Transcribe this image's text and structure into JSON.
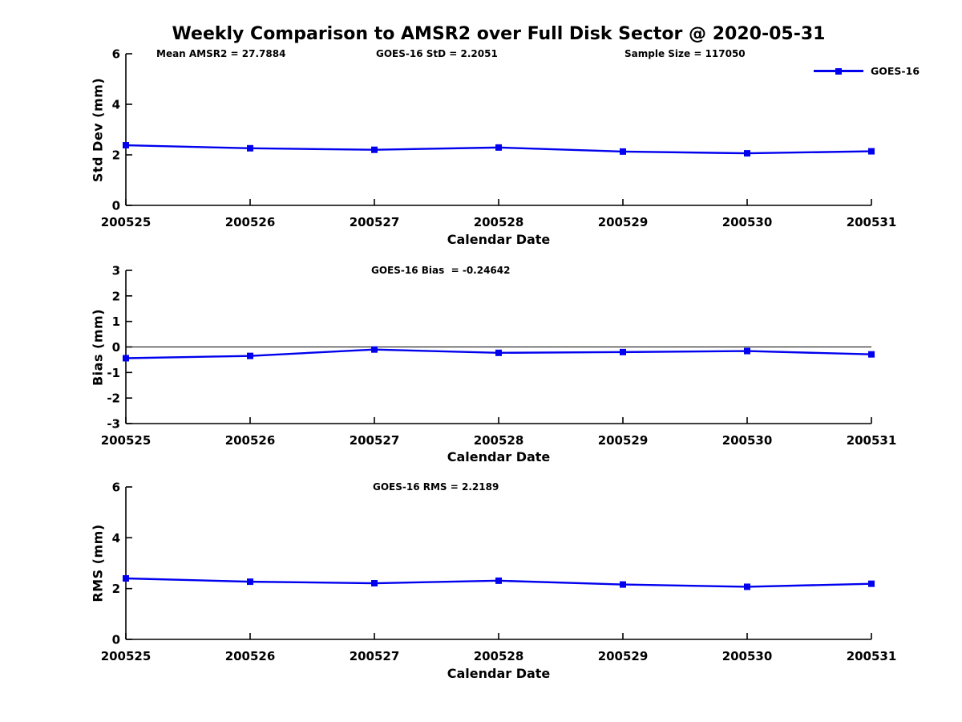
{
  "title": "Weekly Comparison to AMSR2 over Full Disk Sector @ 2020-05-31",
  "legend": {
    "label": "GOES-16",
    "series_color": "#0000EE"
  },
  "chart_data": [
    {
      "type": "line",
      "name": "std-dev",
      "categories": [
        "200525",
        "200526",
        "200527",
        "200528",
        "200529",
        "200530",
        "200531"
      ],
      "series": [
        {
          "name": "GOES-16",
          "values": [
            2.38,
            2.26,
            2.2,
            2.29,
            2.13,
            2.06,
            2.14
          ]
        }
      ],
      "xlabel": "Calendar Date",
      "ylabel": "Std Dev (mm)",
      "ylim": [
        0,
        6
      ],
      "yticks": [
        0,
        2,
        4,
        6
      ],
      "zero_line": false,
      "grid": false,
      "marker": "square",
      "color": "#0000EE",
      "annotations": [
        "Mean AMSR2 = 27.7884",
        "GOES-16 StD = 2.2051",
        "Sample Size = 117050"
      ],
      "legend_position": "top-right"
    },
    {
      "type": "line",
      "name": "bias",
      "categories": [
        "200525",
        "200526",
        "200527",
        "200528",
        "200529",
        "200530",
        "200531"
      ],
      "series": [
        {
          "name": "GOES-16",
          "values": [
            -0.44,
            -0.35,
            -0.1,
            -0.23,
            -0.2,
            -0.16,
            -0.29
          ]
        }
      ],
      "xlabel": "Calendar Date",
      "ylabel": "Bias (mm)",
      "ylim": [
        -3,
        3
      ],
      "yticks": [
        -3,
        -2,
        -1,
        0,
        1,
        2,
        3
      ],
      "zero_line": true,
      "grid": false,
      "marker": "square",
      "color": "#0000EE",
      "annotations": [
        "GOES-16 Bias  = -0.24642"
      ]
    },
    {
      "type": "line",
      "name": "rms",
      "categories": [
        "200525",
        "200526",
        "200527",
        "200528",
        "200529",
        "200530",
        "200531"
      ],
      "series": [
        {
          "name": "GOES-16",
          "values": [
            2.4,
            2.27,
            2.21,
            2.31,
            2.16,
            2.07,
            2.19
          ]
        }
      ],
      "xlabel": "Calendar Date",
      "ylabel": "RMS (mm)",
      "ylim": [
        0,
        6
      ],
      "yticks": [
        0,
        2,
        4,
        6
      ],
      "zero_line": false,
      "grid": false,
      "marker": "square",
      "color": "#0000EE",
      "annotations": [
        "GOES-16 RMS = 2.2189"
      ]
    }
  ]
}
